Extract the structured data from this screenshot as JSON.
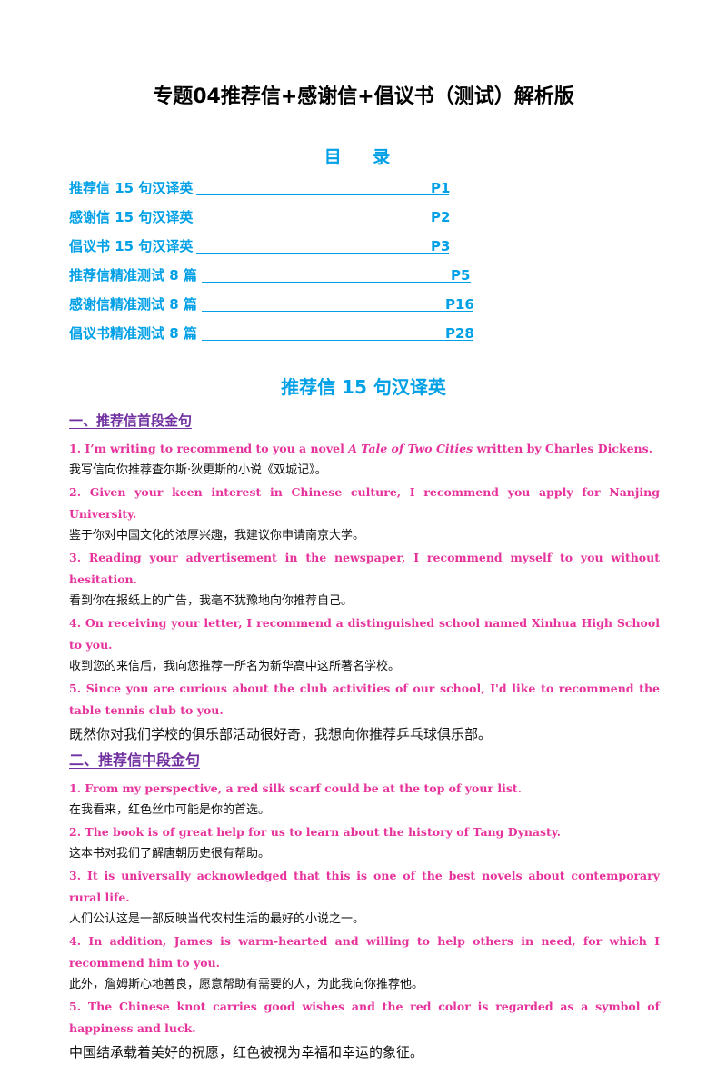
{
  "title": "专题04推荐信+感谢信+倡议书（测试）解析版",
  "toc": {
    "heading": "目 录",
    "items": [
      {
        "label": "推荐信 15 句汉译英",
        "page": "P1"
      },
      {
        "label": "感谢信 15 句汉译英",
        "page": "P2"
      },
      {
        "label": "倡议书 15 句汉译英",
        "page": "P3"
      },
      {
        "label": "推荐信精准测试 8 篇",
        "page": "P5"
      },
      {
        "label": "感谢信精准测试 8 篇",
        "page": "P16"
      },
      {
        "label": "倡议书精准测试 8 篇",
        "page": "P28"
      }
    ]
  },
  "section": {
    "title": "推荐信 15 句汉译英",
    "groups": [
      {
        "heading": "一、推荐信首段金句",
        "sentences": [
          {
            "en_pre": "1. I’m writing to recommend to you a novel ",
            "en_book": "A Tale of Two Cities",
            "en_post": " written by Charles Dickens.",
            "zh": "我写信向你推荐查尔斯·狄更斯的小说《双城记》。"
          },
          {
            "en": "2. Given your keen interest in Chinese culture, I recommend you apply for Nanjing University.",
            "zh": "鉴于你对中国文化的浓厚兴趣，我建议你申请南京大学。"
          },
          {
            "en": "3. Reading your advertisement in the newspaper, I recommend myself to you without hesitation.",
            "zh": "看到你在报纸上的广告，我毫不犹豫地向你推荐自己。"
          },
          {
            "en": "4. On receiving your letter, I recommend a distinguished school named Xinhua High School to you.",
            "zh": "收到您的来信后，我向您推荐一所名为新华高中这所著名学校。"
          },
          {
            "en": "5. Since you are curious about the club activities of our school, I'd like to recommend the table tennis club to you.",
            "zh": "既然你对我们学校的俱乐部活动很好奇，我想向你推荐乒乓球俱乐部。"
          }
        ]
      },
      {
        "heading": "二、推荐信中段金句",
        "sentences": [
          {
            "en": "1. From my perspective, a red silk scarf could be at the top of your list.",
            "zh": "在我看来，红色丝巾可能是你的首选。"
          },
          {
            "en": "2. The book is of great help for us to learn about the history of Tang Dynasty.",
            "zh": "这本书对我们了解唐朝历史很有帮助。"
          },
          {
            "en": "3. It is universally acknowledged that this is one of the best novels about contemporary rural life.",
            "zh": "人们公认这是一部反映当代农村生活的最好的小说之一。"
          },
          {
            "en": "4. In addition, James is warm-hearted and willing to help others in need, for which I recommend him to you.",
            "zh": "此外，詹姆斯心地善良，愿意帮助有需要的人，为此我向你推荐他。"
          },
          {
            "en": "5. The Chinese knot carries good wishes and the red color is regarded as a symbol of happiness and luck.",
            "zh": "中国结承载着美好的祝愿，红色被视为幸福和幸运的象征。"
          }
        ]
      }
    ]
  }
}
